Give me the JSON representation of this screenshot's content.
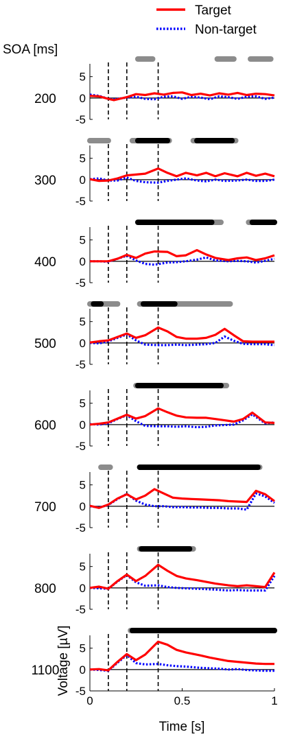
{
  "legend": {
    "items": [
      {
        "label": "Target",
        "color": "#ff0000",
        "style": "solid"
      },
      {
        "label": "Non-target",
        "color": "#0000ff",
        "style": "dotted"
      }
    ],
    "placement": "top-right"
  },
  "row_header": "SOA [ms]",
  "chart_data": {
    "type": "line",
    "xlabel": "Time [s]",
    "ylabel": "Voltage [µV]",
    "xlim": [
      0,
      1
    ],
    "ylim": [
      -5,
      8
    ],
    "xticks": [
      0,
      0.5,
      1
    ],
    "xtick_labels": [
      "0",
      "0.5",
      "1"
    ],
    "yticks": [
      -5,
      0,
      5
    ],
    "ytick_labels": [
      "-5",
      "0",
      "5"
    ],
    "vlines": [
      0.1,
      0.2,
      0.37
    ],
    "significance_colors": {
      "gray": "#8c8c8c",
      "black": "#000000"
    },
    "panels": [
      {
        "soa": "200",
        "target": {
          "x": [
            0,
            0.05,
            0.1,
            0.13,
            0.2,
            0.25,
            0.3,
            0.35,
            0.4,
            0.45,
            0.5,
            0.55,
            0.6,
            0.65,
            0.7,
            0.75,
            0.8,
            0.85,
            0.9,
            0.95,
            1
          ],
          "y": [
            0.5,
            0.4,
            -0.2,
            -0.5,
            0.2,
            0.9,
            0.7,
            1.1,
            0.8,
            1.2,
            1.3,
            0.7,
            1.0,
            0.6,
            1.1,
            0.8,
            1.2,
            0.7,
            1.0,
            0.9,
            0.6
          ]
        },
        "nontarget": {
          "x": [
            0,
            0.05,
            0.1,
            0.13,
            0.2,
            0.25,
            0.3,
            0.35,
            0.4,
            0.45,
            0.5,
            0.55,
            0.6,
            0.65,
            0.7,
            0.75,
            0.8,
            0.85,
            0.9,
            0.95,
            1
          ],
          "y": [
            0.8,
            0.5,
            -0.2,
            -0.3,
            0.1,
            0.3,
            -0.2,
            -0.3,
            0.3,
            0.4,
            -0.2,
            0.3,
            0.1,
            -0.3,
            0.4,
            0.2,
            -0.2,
            0.3,
            0.4,
            -0.2,
            0.1
          ]
        },
        "sig_gray": [
          [
            0.26,
            0.34
          ],
          [
            0.69,
            0.78
          ],
          [
            0.87,
            0.98
          ]
        ],
        "sig_black": []
      },
      {
        "soa": "300",
        "target": {
          "x": [
            0,
            0.05,
            0.1,
            0.15,
            0.2,
            0.25,
            0.3,
            0.37,
            0.42,
            0.47,
            0.52,
            0.58,
            0.63,
            0.68,
            0.73,
            0.8,
            0.85,
            0.9,
            0.95,
            1
          ],
          "y": [
            0.1,
            -0.3,
            -0.2,
            0.3,
            1.0,
            1.2,
            1.4,
            2.6,
            1.6,
            0.8,
            1.6,
            1.0,
            1.6,
            0.8,
            1.5,
            0.8,
            1.6,
            0.9,
            1.4,
            0.8
          ]
        },
        "nontarget": {
          "x": [
            0,
            0.05,
            0.1,
            0.15,
            0.2,
            0.25,
            0.3,
            0.37,
            0.42,
            0.47,
            0.52,
            0.58,
            0.63,
            0.68,
            0.73,
            0.8,
            0.85,
            0.9,
            0.95,
            1
          ],
          "y": [
            0.1,
            0.3,
            -0.2,
            -0.2,
            0.5,
            -0.3,
            -0.6,
            -0.7,
            -0.3,
            0.0,
            0.3,
            -0.2,
            -0.4,
            0.0,
            -0.3,
            -0.2,
            0.0,
            -0.3,
            -0.3,
            0.0
          ]
        },
        "sig_gray": [
          [
            -0.01,
            0.1
          ],
          [
            0.23,
            0.43
          ],
          [
            0.56,
            0.79
          ]
        ],
        "sig_black": [
          [
            0.26,
            0.42
          ],
          [
            0.58,
            0.77
          ]
        ]
      },
      {
        "soa": "400",
        "target": {
          "x": [
            0,
            0.05,
            0.1,
            0.15,
            0.2,
            0.25,
            0.3,
            0.35,
            0.42,
            0.47,
            0.52,
            0.58,
            0.63,
            0.68,
            0.75,
            0.8,
            0.85,
            0.9,
            0.95,
            1
          ],
          "y": [
            0.0,
            0.0,
            0.0,
            0.6,
            1.5,
            0.8,
            1.8,
            2.3,
            2.2,
            1.2,
            1.4,
            2.6,
            1.6,
            0.8,
            0.3,
            0.7,
            0.9,
            0.3,
            0.7,
            1.4
          ]
        },
        "nontarget": {
          "x": [
            0,
            0.05,
            0.1,
            0.15,
            0.2,
            0.25,
            0.3,
            0.35,
            0.42,
            0.47,
            0.52,
            0.58,
            0.63,
            0.68,
            0.75,
            0.8,
            0.85,
            0.9,
            0.95,
            1
          ],
          "y": [
            0.0,
            0.0,
            -0.1,
            0.6,
            1.3,
            0.2,
            -0.6,
            -0.8,
            -0.3,
            -0.2,
            0.0,
            0.4,
            0.9,
            0.2,
            0.0,
            0.1,
            0.0,
            -0.3,
            0.1,
            0.6
          ]
        },
        "sig_gray": [
          [
            0.27,
            0.71
          ],
          [
            0.86,
            1.0
          ]
        ],
        "sig_black": [
          [
            0.26,
            0.66
          ],
          [
            0.88,
            1.0
          ]
        ]
      },
      {
        "soa": "500",
        "target": {
          "x": [
            0,
            0.05,
            0.1,
            0.15,
            0.2,
            0.25,
            0.3,
            0.37,
            0.42,
            0.47,
            0.52,
            0.58,
            0.63,
            0.68,
            0.73,
            0.78,
            0.83,
            0.88,
            0.95,
            1
          ],
          "y": [
            0.1,
            0.4,
            0.6,
            1.4,
            2.2,
            1.2,
            1.8,
            3.6,
            2.7,
            1.4,
            1.0,
            1.0,
            1.2,
            1.9,
            3.3,
            1.8,
            0.4,
            0.3,
            0.3,
            0.3
          ]
        },
        "nontarget": {
          "x": [
            0,
            0.05,
            0.1,
            0.15,
            0.2,
            0.25,
            0.3,
            0.37,
            0.42,
            0.47,
            0.52,
            0.58,
            0.63,
            0.68,
            0.73,
            0.78,
            0.83,
            0.88,
            0.95,
            1
          ],
          "y": [
            0.0,
            -0.1,
            0.4,
            1.2,
            2.0,
            0.6,
            -0.4,
            -0.5,
            -0.5,
            -0.4,
            -0.5,
            -0.4,
            -0.3,
            0.0,
            1.5,
            0.5,
            -0.2,
            -0.3,
            -0.3,
            -0.5
          ]
        },
        "sig_gray": [
          [
            -0.01,
            0.15
          ],
          [
            0.27,
            0.76
          ]
        ],
        "sig_black": [
          [
            0.02,
            0.06
          ],
          [
            0.29,
            0.46
          ]
        ]
      },
      {
        "soa": "600",
        "target": {
          "x": [
            0,
            0.05,
            0.1,
            0.15,
            0.2,
            0.25,
            0.3,
            0.37,
            0.42,
            0.47,
            0.52,
            0.58,
            0.63,
            0.68,
            0.73,
            0.78,
            0.83,
            0.88,
            0.95,
            1
          ],
          "y": [
            0.0,
            0.2,
            0.5,
            1.4,
            2.3,
            1.4,
            2.0,
            3.8,
            2.9,
            2.1,
            1.7,
            1.6,
            1.6,
            1.3,
            1.0,
            0.7,
            1.3,
            2.8,
            0.5,
            0.4
          ]
        },
        "nontarget": {
          "x": [
            0,
            0.05,
            0.1,
            0.15,
            0.2,
            0.25,
            0.3,
            0.37,
            0.42,
            0.47,
            0.52,
            0.58,
            0.63,
            0.68,
            0.73,
            0.78,
            0.83,
            0.88,
            0.95,
            1
          ],
          "y": [
            0.1,
            0.0,
            0.3,
            1.3,
            2.2,
            0.8,
            -0.3,
            -0.4,
            -0.4,
            -0.5,
            -0.4,
            -0.6,
            -0.5,
            -0.2,
            -0.1,
            0.0,
            1.0,
            2.4,
            0.3,
            0.5
          ]
        },
        "sig_gray": [
          [
            0.25,
            0.74
          ]
        ],
        "sig_black": [
          [
            0.26,
            0.71
          ]
        ]
      },
      {
        "soa": "700",
        "target": {
          "x": [
            0,
            0.05,
            0.1,
            0.15,
            0.2,
            0.25,
            0.3,
            0.35,
            0.4,
            0.45,
            0.5,
            0.55,
            0.6,
            0.65,
            0.7,
            0.75,
            0.8,
            0.85,
            0.9,
            0.95,
            1
          ],
          "y": [
            0.1,
            -0.4,
            0.4,
            1.8,
            2.8,
            1.6,
            2.5,
            4.0,
            3.0,
            2.0,
            1.8,
            1.7,
            1.6,
            1.5,
            1.4,
            1.2,
            1.1,
            1.0,
            3.6,
            2.8,
            1.2
          ]
        },
        "nontarget": {
          "x": [
            0,
            0.05,
            0.1,
            0.15,
            0.2,
            0.25,
            0.3,
            0.35,
            0.4,
            0.45,
            0.5,
            0.55,
            0.6,
            0.65,
            0.7,
            0.75,
            0.8,
            0.85,
            0.9,
            0.95,
            1
          ],
          "y": [
            0.0,
            -0.3,
            0.3,
            1.7,
            2.9,
            1.3,
            0.4,
            0.0,
            0.0,
            -0.2,
            -0.2,
            -0.3,
            -0.3,
            -0.4,
            -0.4,
            -0.5,
            -0.5,
            -0.8,
            3.0,
            2.3,
            0.8
          ]
        },
        "sig_gray": [
          [
            0.06,
            0.11
          ],
          [
            0.27,
            0.92
          ]
        ],
        "sig_black": [
          [
            0.27,
            0.91
          ]
        ]
      },
      {
        "soa": "800",
        "target": {
          "x": [
            0,
            0.05,
            0.1,
            0.15,
            0.2,
            0.25,
            0.3,
            0.37,
            0.42,
            0.47,
            0.52,
            0.58,
            0.63,
            0.68,
            0.75,
            0.8,
            0.85,
            0.9,
            0.95,
            1
          ],
          "y": [
            0.0,
            0.3,
            -0.2,
            1.6,
            3.1,
            1.6,
            2.8,
            5.4,
            4.0,
            2.8,
            2.2,
            1.8,
            1.4,
            1.0,
            0.6,
            0.4,
            0.6,
            0.4,
            0.2,
            3.6
          ]
        },
        "nontarget": {
          "x": [
            0,
            0.05,
            0.1,
            0.15,
            0.2,
            0.25,
            0.3,
            0.37,
            0.42,
            0.47,
            0.52,
            0.58,
            0.63,
            0.68,
            0.75,
            0.8,
            0.85,
            0.9,
            0.95,
            1
          ],
          "y": [
            0.0,
            -0.1,
            -0.2,
            1.5,
            3.0,
            1.3,
            0.5,
            0.6,
            0.2,
            0.0,
            -0.1,
            -0.2,
            -0.3,
            -0.4,
            -0.6,
            -0.5,
            -0.6,
            -0.6,
            -0.6,
            2.8
          ]
        },
        "sig_gray": [
          [
            0.27,
            0.56
          ]
        ],
        "sig_black": [
          [
            0.28,
            0.54
          ]
        ]
      },
      {
        "soa": "1100",
        "target": {
          "x": [
            0,
            0.05,
            0.1,
            0.15,
            0.2,
            0.25,
            0.3,
            0.37,
            0.42,
            0.47,
            0.52,
            0.6,
            0.65,
            0.7,
            0.75,
            0.8,
            0.85,
            0.9,
            0.95,
            1
          ],
          "y": [
            0.0,
            0.1,
            -0.2,
            1.8,
            3.6,
            2.2,
            3.5,
            6.5,
            5.8,
            4.6,
            4.0,
            3.3,
            2.8,
            2.4,
            2.0,
            1.8,
            1.6,
            1.4,
            1.3,
            1.3
          ]
        },
        "nontarget": {
          "x": [
            0,
            0.05,
            0.1,
            0.15,
            0.2,
            0.25,
            0.3,
            0.37,
            0.42,
            0.47,
            0.52,
            0.6,
            0.65,
            0.7,
            0.75,
            0.8,
            0.85,
            0.9,
            0.95,
            1
          ],
          "y": [
            0.0,
            -0.1,
            -0.3,
            1.6,
            3.4,
            1.5,
            1.2,
            1.3,
            1.0,
            0.8,
            0.7,
            0.4,
            0.3,
            0.2,
            0.0,
            0.1,
            -0.1,
            -0.2,
            -0.3,
            -0.3
          ]
        },
        "sig_gray": [
          [
            0.22,
            1.0
          ]
        ],
        "sig_black": [
          [
            0.23,
            1.0
          ]
        ]
      }
    ]
  }
}
